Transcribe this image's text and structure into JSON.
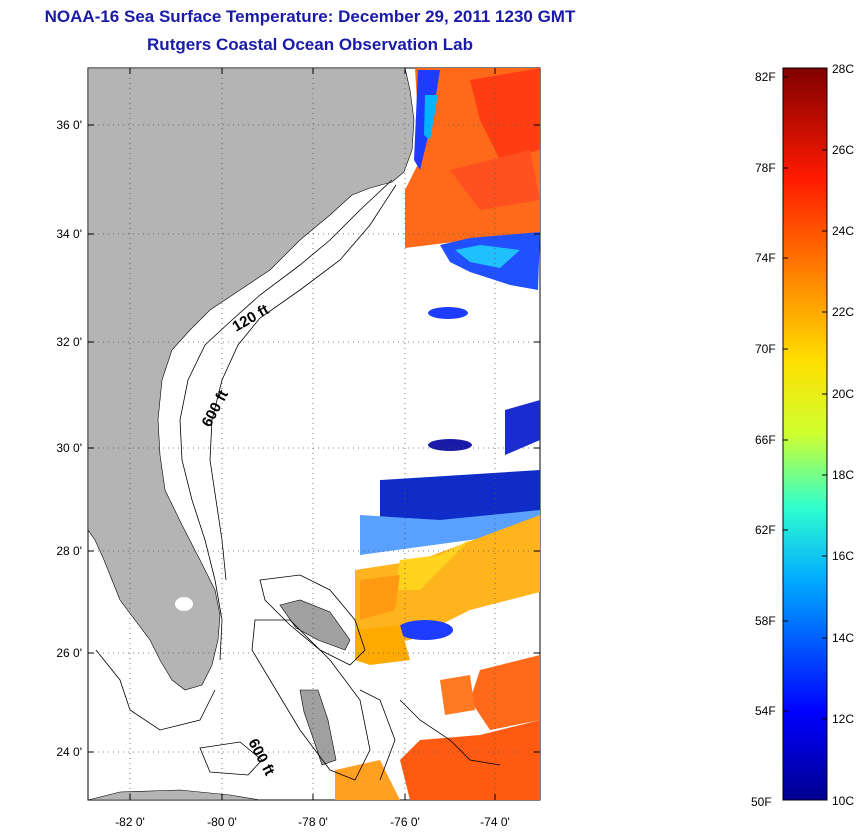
{
  "header": {
    "title": "NOAA-16 Sea Surface Temperature:  December 29, 2011 1230 GMT",
    "subtitle": "Rutgers Coastal Ocean Observation Lab"
  },
  "map": {
    "lat_ticks": [
      "36 0'",
      "34 0'",
      "32 0'",
      "30 0'",
      "28 0'",
      "26 0'",
      "24 0'"
    ],
    "lon_ticks": [
      "-82 0'",
      "-80 0'",
      "-78 0'",
      "-76 0'",
      "-74 0'"
    ],
    "contour_labels": [
      "120 ft",
      "600 ft",
      "600 ft"
    ],
    "colors": {
      "land": "#b4b4b4",
      "ocean_nodata": "#ffffff"
    }
  },
  "colorbar": {
    "fahrenheit": [
      "82F",
      "78F",
      "74F",
      "70F",
      "66F",
      "62F",
      "58F",
      "54F",
      "50F"
    ],
    "celsius": [
      "28C",
      "26C",
      "24C",
      "22C",
      "20C",
      "18C",
      "16C",
      "14C",
      "12C",
      "10C"
    ]
  }
}
